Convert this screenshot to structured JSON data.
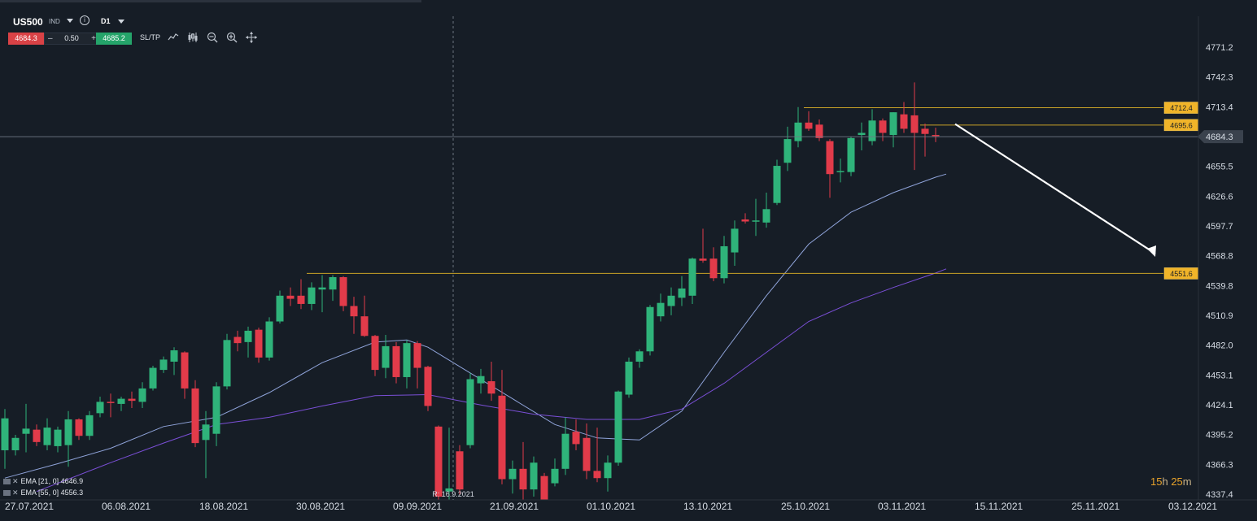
{
  "toolbar": {
    "symbol": "US500",
    "symbol_type": "IND",
    "timeframe": "D1",
    "sell_price": "4684.3",
    "quantity": "0.50",
    "buy_price": "4685.2",
    "sltp_label": "SL/TP",
    "tools": [
      "line-chart-icon",
      "candlestick-icon",
      "zoom-out-icon",
      "zoom-in-icon",
      "crosshair-icon"
    ]
  },
  "countdown": {
    "hours": "15",
    "hours_unit": "h",
    "minutes": "25",
    "minutes_unit": "m"
  },
  "ema_legend": [
    {
      "label": "EMA [21, 0] 4646.9",
      "color": "#8fa3d9"
    },
    {
      "label": "EMA [55, 0] 4556.3",
      "color": "#7a4fd6"
    }
  ],
  "chart_data": {
    "type": "candlestick",
    "instrument": "US500",
    "timeframe": "D1",
    "y_ticks": [
      "4771.2",
      "4742.3",
      "4713.4",
      "4684.3",
      "4655.5",
      "4626.6",
      "4597.7",
      "4568.8",
      "4539.8",
      "4510.9",
      "4482.0",
      "4453.1",
      "4424.1",
      "4395.2",
      "4366.3",
      "4337.4"
    ],
    "x_ticks": [
      "27.07.2021",
      "06.08.2021",
      "18.08.2021",
      "30.08.2021",
      "09.09.2021",
      "21.09.2021",
      "01.10.2021",
      "13.10.2021",
      "25.10.2021",
      "03.11.2021",
      "15.11.2021",
      "25.11.2021",
      "03.12.2021"
    ],
    "ylim": [
      4335,
      4785
    ],
    "current_price": "4684.3",
    "price_labels": [
      "4712.4",
      "4695.6",
      "4551.6"
    ],
    "cursor_label": "R: 16.9.2021",
    "candles": [
      {
        "d": "2021-07-23",
        "o": 4380,
        "h": 4420,
        "l": 4362,
        "c": 4411
      },
      {
        "d": "2021-07-26",
        "o": 4380,
        "h": 4395,
        "l": 4375,
        "c": 4392
      },
      {
        "d": "2021-07-27",
        "o": 4396,
        "h": 4425,
        "l": 4378,
        "c": 4401
      },
      {
        "d": "2021-07-28",
        "o": 4400,
        "h": 4405,
        "l": 4384,
        "c": 4388
      },
      {
        "d": "2021-07-29",
        "o": 4385,
        "h": 4411,
        "l": 4380,
        "c": 4402
      },
      {
        "d": "2021-07-30",
        "o": 4384,
        "h": 4403,
        "l": 4378,
        "c": 4400
      },
      {
        "d": "2021-08-02",
        "o": 4385,
        "h": 4418,
        "l": 4364,
        "c": 4410
      },
      {
        "d": "2021-08-03",
        "o": 4410,
        "h": 4411,
        "l": 4390,
        "c": 4394
      },
      {
        "d": "2021-08-04",
        "o": 4394,
        "h": 4418,
        "l": 4390,
        "c": 4414
      },
      {
        "d": "2021-08-05",
        "o": 4416,
        "h": 4432,
        "l": 4412,
        "c": 4427
      },
      {
        "d": "2021-08-06",
        "o": 4427,
        "h": 4435,
        "l": 4412,
        "c": 4426
      },
      {
        "d": "2021-08-09",
        "o": 4425,
        "h": 4432,
        "l": 4418,
        "c": 4430
      },
      {
        "d": "2021-08-10",
        "o": 4430,
        "h": 4437,
        "l": 4421,
        "c": 4428
      },
      {
        "d": "2021-08-11",
        "o": 4427,
        "h": 4446,
        "l": 4421,
        "c": 4440
      },
      {
        "d": "2021-08-12",
        "o": 4440,
        "h": 4462,
        "l": 4438,
        "c": 4460
      },
      {
        "d": "2021-08-13",
        "o": 4458,
        "h": 4471,
        "l": 4455,
        "c": 4468
      },
      {
        "d": "2021-08-16",
        "o": 4466,
        "h": 4480,
        "l": 4453,
        "c": 4477
      },
      {
        "d": "2021-08-17",
        "o": 4475,
        "h": 4476,
        "l": 4430,
        "c": 4440
      },
      {
        "d": "2021-08-18",
        "o": 4440,
        "h": 4448,
        "l": 4383,
        "c": 4387
      },
      {
        "d": "2021-08-19",
        "o": 4390,
        "h": 4418,
        "l": 4353,
        "c": 4405
      },
      {
        "d": "2021-08-20",
        "o": 4396,
        "h": 4446,
        "l": 4384,
        "c": 4442
      },
      {
        "d": "2021-08-23",
        "o": 4442,
        "h": 4493,
        "l": 4439,
        "c": 4487
      },
      {
        "d": "2021-08-24",
        "o": 4490,
        "h": 4496,
        "l": 4476,
        "c": 4484
      },
      {
        "d": "2021-08-25",
        "o": 4485,
        "h": 4500,
        "l": 4470,
        "c": 4496
      },
      {
        "d": "2021-08-26",
        "o": 4497,
        "h": 4499,
        "l": 4465,
        "c": 4470
      },
      {
        "d": "2021-08-27",
        "o": 4470,
        "h": 4509,
        "l": 4467,
        "c": 4505
      },
      {
        "d": "2021-08-30",
        "o": 4505,
        "h": 4535,
        "l": 4503,
        "c": 4530
      },
      {
        "d": "2021-08-31",
        "o": 4530,
        "h": 4538,
        "l": 4520,
        "c": 4527
      },
      {
        "d": "2021-09-01",
        "o": 4530,
        "h": 4546,
        "l": 4517,
        "c": 4522
      },
      {
        "d": "2021-09-02",
        "o": 4522,
        "h": 4543,
        "l": 4516,
        "c": 4538
      },
      {
        "d": "2021-09-03",
        "o": 4536,
        "h": 4550,
        "l": 4514,
        "c": 4538
      },
      {
        "d": "2021-09-06",
        "o": 4536,
        "h": 4550,
        "l": 4525,
        "c": 4548
      },
      {
        "d": "2021-09-07",
        "o": 4548,
        "h": 4549,
        "l": 4515,
        "c": 4520
      },
      {
        "d": "2021-09-08",
        "o": 4520,
        "h": 4529,
        "l": 4493,
        "c": 4510
      },
      {
        "d": "2021-09-09",
        "o": 4510,
        "h": 4530,
        "l": 4490,
        "c": 4491
      },
      {
        "d": "2021-09-10",
        "o": 4491,
        "h": 4492,
        "l": 4452,
        "c": 4458
      },
      {
        "d": "2021-09-13",
        "o": 4460,
        "h": 4492,
        "l": 4450,
        "c": 4481
      },
      {
        "d": "2021-09-14",
        "o": 4481,
        "h": 4485,
        "l": 4445,
        "c": 4451
      },
      {
        "d": "2021-09-15",
        "o": 4451,
        "h": 4487,
        "l": 4440,
        "c": 4484
      },
      {
        "d": "2021-09-16",
        "o": 4484,
        "h": 4486,
        "l": 4440,
        "c": 4460
      },
      {
        "d": "2021-09-17",
        "o": 4461,
        "h": 4462,
        "l": 4418,
        "c": 4423
      },
      {
        "d": "2021-09-20",
        "o": 4403,
        "h": 4404,
        "l": 4331,
        "c": 4335
      },
      {
        "d": "2021-09-21",
        "o": 4340,
        "h": 4402,
        "l": 4328,
        "c": 4343
      },
      {
        "d": "2021-09-22",
        "o": 4379,
        "h": 4385,
        "l": 4337,
        "c": 4342
      },
      {
        "d": "2021-09-23",
        "o": 4385,
        "h": 4455,
        "l": 4382,
        "c": 4449
      },
      {
        "d": "2021-09-24",
        "o": 4445,
        "h": 4459,
        "l": 4435,
        "c": 4452
      },
      {
        "d": "2021-09-27",
        "o": 4447,
        "h": 4466,
        "l": 4428,
        "c": 4435
      },
      {
        "d": "2021-09-28",
        "o": 4433,
        "h": 4458,
        "l": 4347,
        "c": 4352
      },
      {
        "d": "2021-09-29",
        "o": 4352,
        "h": 4370,
        "l": 4338,
        "c": 4362
      },
      {
        "d": "2021-09-30",
        "o": 4362,
        "h": 4388,
        "l": 4323,
        "c": 4342
      },
      {
        "d": "2021-10-01",
        "o": 4342,
        "h": 4374,
        "l": 4335,
        "c": 4368
      },
      {
        "d": "2021-10-04",
        "o": 4355,
        "h": 4358,
        "l": 4301,
        "c": 4306
      },
      {
        "d": "2021-10-05",
        "o": 4348,
        "h": 4372,
        "l": 4345,
        "c": 4362
      },
      {
        "d": "2021-10-06",
        "o": 4362,
        "h": 4412,
        "l": 4356,
        "c": 4396
      },
      {
        "d": "2021-10-07",
        "o": 4398,
        "h": 4410,
        "l": 4380,
        "c": 4386
      },
      {
        "d": "2021-10-08",
        "o": 4392,
        "h": 4406,
        "l": 4352,
        "c": 4360
      },
      {
        "d": "2021-10-11",
        "o": 4360,
        "h": 4402,
        "l": 4349,
        "c": 4353
      },
      {
        "d": "2021-10-12",
        "o": 4353,
        "h": 4375,
        "l": 4340,
        "c": 4368
      },
      {
        "d": "2021-10-13",
        "o": 4368,
        "h": 4438,
        "l": 4365,
        "c": 4437
      },
      {
        "d": "2021-10-14",
        "o": 4434,
        "h": 4470,
        "l": 4431,
        "c": 4466
      },
      {
        "d": "2021-10-15",
        "o": 4466,
        "h": 4478,
        "l": 4460,
        "c": 4476
      },
      {
        "d": "2021-10-18",
        "o": 4476,
        "h": 4521,
        "l": 4472,
        "c": 4519
      },
      {
        "d": "2021-10-19",
        "o": 4510,
        "h": 4532,
        "l": 4505,
        "c": 4523
      },
      {
        "d": "2021-10-20",
        "o": 4520,
        "h": 4538,
        "l": 4511,
        "c": 4530
      },
      {
        "d": "2021-10-21",
        "o": 4528,
        "h": 4549,
        "l": 4520,
        "c": 4537
      },
      {
        "d": "2021-10-22",
        "o": 4530,
        "h": 4567,
        "l": 4522,
        "c": 4566
      },
      {
        "d": "2021-10-25",
        "o": 4566,
        "h": 4595,
        "l": 4562,
        "c": 4564
      },
      {
        "d": "2021-10-26",
        "o": 4566,
        "h": 4577,
        "l": 4544,
        "c": 4547
      },
      {
        "d": "2021-10-27",
        "o": 4547,
        "h": 4588,
        "l": 4542,
        "c": 4578
      },
      {
        "d": "2021-10-28",
        "o": 4572,
        "h": 4603,
        "l": 4559,
        "c": 4595
      },
      {
        "d": "2021-10-29",
        "o": 4604,
        "h": 4610,
        "l": 4600,
        "c": 4602
      },
      {
        "d": "2021-11-01",
        "o": 4602,
        "h": 4624,
        "l": 4588,
        "c": 4603
      },
      {
        "d": "2021-11-02",
        "o": 4601,
        "h": 4630,
        "l": 4596,
        "c": 4614
      },
      {
        "d": "2021-11-03",
        "o": 4620,
        "h": 4662,
        "l": 4618,
        "c": 4656
      },
      {
        "d": "2021-11-04",
        "o": 4659,
        "h": 4694,
        "l": 4651,
        "c": 4682
      },
      {
        "d": "2021-11-05",
        "o": 4680,
        "h": 4713,
        "l": 4674,
        "c": 4698
      },
      {
        "d": "2021-11-08",
        "o": 4698,
        "h": 4709,
        "l": 4690,
        "c": 4692
      },
      {
        "d": "2021-11-09",
        "o": 4696,
        "h": 4701,
        "l": 4680,
        "c": 4683
      },
      {
        "d": "2021-11-10",
        "o": 4680,
        "h": 4682,
        "l": 4625,
        "c": 4648
      },
      {
        "d": "2021-11-11",
        "o": 4650,
        "h": 4663,
        "l": 4640,
        "c": 4651
      },
      {
        "d": "2021-11-12",
        "o": 4650,
        "h": 4684,
        "l": 4646,
        "c": 4683
      },
      {
        "d": "2021-11-15",
        "o": 4686,
        "h": 4698,
        "l": 4671,
        "c": 4688
      },
      {
        "d": "2021-11-16",
        "o": 4680,
        "h": 4711,
        "l": 4676,
        "c": 4700
      },
      {
        "d": "2021-11-17",
        "o": 4700,
        "h": 4702,
        "l": 4680,
        "c": 4688
      },
      {
        "d": "2021-11-18",
        "o": 4686,
        "h": 4708,
        "l": 4674,
        "c": 4708
      },
      {
        "d": "2021-11-19",
        "o": 4706,
        "h": 4718,
        "l": 4688,
        "c": 4692
      },
      {
        "d": "2021-11-22",
        "o": 4705,
        "h": 4737,
        "l": 4652,
        "c": 4688
      },
      {
        "d": "2021-11-23",
        "o": 4692,
        "h": 4697,
        "l": 4665,
        "c": 4687
      },
      {
        "d": "2021-11-24",
        "o": 4686,
        "h": 4693,
        "l": 4679,
        "c": 4685
      }
    ],
    "ema_21": [
      [
        0,
        4353
      ],
      [
        5,
        4367
      ],
      [
        10,
        4382
      ],
      [
        15,
        4403
      ],
      [
        20,
        4412
      ],
      [
        25,
        4436
      ],
      [
        30,
        4465
      ],
      [
        35,
        4485
      ],
      [
        38,
        4487
      ],
      [
        40,
        4480
      ],
      [
        44,
        4455
      ],
      [
        48,
        4430
      ],
      [
        52,
        4405
      ],
      [
        56,
        4392
      ],
      [
        60,
        4390
      ],
      [
        64,
        4418
      ],
      [
        68,
        4475
      ],
      [
        72,
        4530
      ],
      [
        76,
        4580
      ],
      [
        80,
        4611
      ],
      [
        84,
        4630
      ],
      [
        88,
        4645
      ],
      [
        89,
        4648
      ]
    ],
    "ema_55": [
      [
        3,
        4340
      ],
      [
        10,
        4368
      ],
      [
        15,
        4387
      ],
      [
        20,
        4405
      ],
      [
        25,
        4412
      ],
      [
        30,
        4423
      ],
      [
        35,
        4433
      ],
      [
        40,
        4434
      ],
      [
        45,
        4424
      ],
      [
        50,
        4415
      ],
      [
        55,
        4410
      ],
      [
        60,
        4410
      ],
      [
        64,
        4420
      ],
      [
        68,
        4445
      ],
      [
        72,
        4475
      ],
      [
        76,
        4505
      ],
      [
        80,
        4523
      ],
      [
        84,
        4538
      ],
      [
        88,
        4552
      ],
      [
        89,
        4556
      ]
    ],
    "horizontal_levels": [
      {
        "price": 4712.4,
        "from": 76,
        "to": "edge"
      },
      {
        "price": 4695.6,
        "from": 87,
        "to": "edge"
      },
      {
        "price": 4551.6,
        "from": 29,
        "to": "edge"
      }
    ],
    "projection_arrow": {
      "from": {
        "i": 90,
        "price": 4695
      },
      "to": {
        "i": 98,
        "price": 4570
      }
    }
  }
}
